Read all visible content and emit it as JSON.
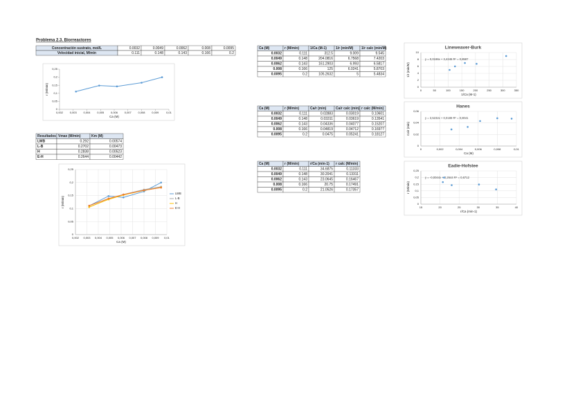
{
  "title": "Problema 2.3. Biorreactores",
  "tables": [
    {
      "rows": [
        [
          "Concentración sustrato, mol/L",
          0.0032,
          0.0049,
          0.0062,
          0.008,
          0.0095
        ],
        [
          "Velocidad inicial, M/min",
          0.111,
          0.148,
          0.143,
          0.166,
          0.2
        ]
      ]
    },
    {
      "header": [
        "Resultados",
        "Vmax (M/min)",
        "Km (M)"
      ],
      "rows": [
        [
          "LWB",
          0.292,
          0.00574
        ],
        [
          "L-B",
          0.2702,
          0.00473
        ],
        [
          "H",
          0.2838,
          0.00523
        ],
        [
          "E-H",
          0.2644,
          0.00442
        ]
      ]
    },
    {
      "header": [
        "Ca (M)",
        "r (M/min)",
        "1/Ca (M-1)",
        "1/r (min/M)",
        "1/r calc (min/M)"
      ],
      "rows": [
        [
          0.0032,
          0.111,
          312.5,
          9.009,
          9.545
        ],
        [
          0.0049,
          0.148,
          204.0816,
          6.7568,
          7.4203
        ],
        [
          0.0062,
          0.143,
          161.2903,
          6.993,
          6.5817
        ],
        [
          0.008,
          0.166,
          125,
          6.0241,
          5.8703
        ],
        [
          0.0095,
          0.2,
          105.2632,
          5,
          5.4834
        ]
      ]
    },
    {
      "header": [
        "Ca (M)",
        "r (M/min)",
        "Ca/r (min)",
        "Ca/r calc (min)",
        "r calc (M/min)"
      ],
      "rows": [
        [
          0.0032,
          0.111,
          0.02883,
          0.03019,
          0.10601
        ],
        [
          0.0049,
          0.148,
          0.03311,
          0.03619,
          0.13541
        ],
        [
          0.0062,
          0.143,
          0.04336,
          0.04077,
          0.15207
        ],
        [
          0.008,
          0.166,
          0.04819,
          0.04712,
          0.16977
        ],
        [
          0.0095,
          0.2,
          0.0475,
          0.05241,
          0.18127
        ]
      ]
    },
    {
      "header": [
        "Ca (M)",
        "r (M/min)",
        "r/Ca (min-1)",
        "r calc (M/min)"
      ],
      "rows": [
        [
          0.0032,
          0.111,
          34.6875,
          0.11333
        ],
        [
          0.0049,
          0.148,
          30.2041,
          0.13311
        ],
        [
          0.0062,
          0.143,
          23.0645,
          0.16467
        ],
        [
          0.008,
          0.166,
          20.75,
          0.17491
        ],
        [
          0.0095,
          0.2,
          21.0526,
          0.17357
        ]
      ]
    }
  ],
  "charts": [
    {
      "type": "line",
      "x_label": "Ca (M)",
      "y_label": "r (M/min)",
      "xlim": [
        0.002,
        0.01
      ],
      "xticks": [
        {
          "value": 0.002,
          "label": "0,002"
        },
        {
          "value": 0.003,
          "label": "0,003"
        },
        {
          "value": 0.004,
          "label": "0,004"
        },
        {
          "value": 0.005,
          "label": "0,005"
        },
        {
          "value": 0.006,
          "label": "0,006"
        },
        {
          "value": 0.007,
          "label": "0,007"
        },
        {
          "value": 0.008,
          "label": "0,008"
        },
        {
          "value": 0.009,
          "label": "0,009"
        },
        {
          "value": 0.01,
          "label": "0,01"
        }
      ],
      "ylim": [
        0,
        0.25
      ],
      "yticks": [
        0,
        {
          "value": 0.05,
          "label": "0,05"
        },
        {
          "value": 0.1,
          "label": "0,1"
        },
        {
          "value": 0.15,
          "label": "0,15"
        },
        {
          "value": 0.2,
          "label": "0,2"
        },
        {
          "value": 0.25,
          "label": "0,25"
        }
      ],
      "grid": false,
      "series": [
        {
          "color": "#5b9bd5",
          "x": [
            0.0032,
            0.0049,
            0.0062,
            0.008,
            0.0095
          ],
          "values": [
            0.111,
            0.148,
            0.143,
            0.166,
            0.2
          ]
        }
      ]
    },
    {
      "type": "line",
      "x_label": "Ca (M)",
      "y_label": "r (M/min)",
      "xlim": [
        0.002,
        0.01
      ],
      "xticks": [
        {
          "value": 0.002,
          "label": "0,002"
        },
        {
          "value": 0.003,
          "label": "0,003"
        },
        {
          "value": 0.004,
          "label": "0,004"
        },
        {
          "value": 0.005,
          "label": "0,005"
        },
        {
          "value": 0.006,
          "label": "0,006"
        },
        {
          "value": 0.007,
          "label": "0,007"
        },
        {
          "value": 0.008,
          "label": "0,008"
        },
        {
          "value": 0.009,
          "label": "0,009"
        },
        {
          "value": 0.01,
          "label": "0,01"
        }
      ],
      "ylim": [
        0,
        0.25
      ],
      "yticks": [
        0,
        {
          "value": 0.05,
          "label": "0,05"
        },
        {
          "value": 0.1,
          "label": "0,1"
        },
        {
          "value": 0.15,
          "label": "0,15"
        },
        {
          "value": 0.2,
          "label": "0,2"
        },
        {
          "value": 0.25,
          "label": "0,25"
        }
      ],
      "grid": true,
      "legend": "right",
      "series": [
        {
          "name": "LWB",
          "color": "#5b9bd5",
          "x": [
            0.0032,
            0.0049,
            0.0062,
            0.008,
            0.0095
          ],
          "values": [
            0.111,
            0.148,
            0.143,
            0.166,
            0.2
          ]
        },
        {
          "name": "L-B",
          "color": "#a5a5a5",
          "x": [
            0.0032,
            0.0049,
            0.0062,
            0.008,
            0.0095
          ],
          "values": [
            0.1057,
            0.1365,
            0.1543,
            0.1728,
            0.1843
          ]
        },
        {
          "name": "H",
          "color": "#ffc000",
          "x": [
            0.0032,
            0.0049,
            0.0062,
            0.008,
            0.0095
          ],
          "values": [
            0.106,
            0.1354,
            0.1521,
            0.1698,
            0.1813
          ]
        },
        {
          "name": "E-H",
          "color": "#ed7d31",
          "x": [
            0.0032,
            0.0049,
            0.0062,
            0.008,
            0.0095
          ],
          "values": [
            0.1113,
            0.1387,
            0.1538,
            0.1702,
            0.1804
          ]
        }
      ]
    },
    {
      "type": "scatter",
      "title": "Lineweaver-Burk",
      "x_label": "1/Ca (M-1)",
      "y_label": "1/r (min/M)",
      "annotation": "y = 0,0196x + 3,4246  R² = 0,8587",
      "xlim": [
        0,
        350
      ],
      "xticks": [
        0,
        50,
        100,
        150,
        200,
        250,
        300,
        350
      ],
      "ylim": [
        0,
        10
      ],
      "yticks": [
        0,
        2,
        4,
        6,
        8,
        10
      ],
      "grid": true,
      "series": [
        {
          "color": "#5b9bd5",
          "x": [
            312.5,
            204.0816,
            161.2903,
            125,
            105.2632
          ],
          "values": [
            9.009,
            6.7568,
            6.993,
            6.0241,
            5
          ]
        }
      ]
    },
    {
      "type": "scatter",
      "title": "Hanes",
      "x_label": "Ca (M)",
      "y_label": "Ca/r (min)",
      "annotation": "y = 3,5232x + 0,0189  R² = 0,8041",
      "xlim": [
        0,
        0.01
      ],
      "xticks": [
        0,
        {
          "value": 0.002,
          "label": "0,002"
        },
        {
          "value": 0.004,
          "label": "0,004"
        },
        {
          "value": 0.006,
          "label": "0,006"
        },
        {
          "value": 0.008,
          "label": "0,008"
        },
        {
          "value": 0.01,
          "label": "0,01"
        }
      ],
      "ylim": [
        0,
        0.06
      ],
      "yticks": [
        0,
        {
          "value": 0.02,
          "label": "0,02"
        },
        {
          "value": 0.04,
          "label": "0,04"
        },
        {
          "value": 0.06,
          "label": "0,06"
        }
      ],
      "grid": true,
      "series": [
        {
          "color": "#5b9bd5",
          "x": [
            0.0032,
            0.0049,
            0.0062,
            0.008,
            0.0095
          ],
          "values": [
            0.02883,
            0.03311,
            0.04336,
            0.04819,
            0.0475
          ]
        }
      ]
    },
    {
      "type": "scatter",
      "title": "Eadie-Hofstee",
      "x_label": "r/Ca (min-1)",
      "y_label": "r (M/min)",
      "annotation": "y = -0,0044x + 0,2644  R² = 0,6712",
      "xlim": [
        15,
        40
      ],
      "xticks": [
        15,
        20,
        25,
        30,
        35,
        40
      ],
      "ylim": [
        0,
        0.25
      ],
      "yticks": [
        0,
        {
          "value": 0.05,
          "label": "0,05"
        },
        {
          "value": 0.1,
          "label": "0,1"
        },
        {
          "value": 0.15,
          "label": "0,15"
        },
        {
          "value": 0.2,
          "label": "0,2"
        },
        {
          "value": 0.25,
          "label": "0,25"
        }
      ],
      "grid": true,
      "series": [
        {
          "color": "#5b9bd5",
          "x": [
            34.6875,
            30.2041,
            23.0645,
            20.75,
            21.0526
          ],
          "values": [
            0.111,
            0.148,
            0.143,
            0.166,
            0.2
          ]
        }
      ]
    }
  ]
}
